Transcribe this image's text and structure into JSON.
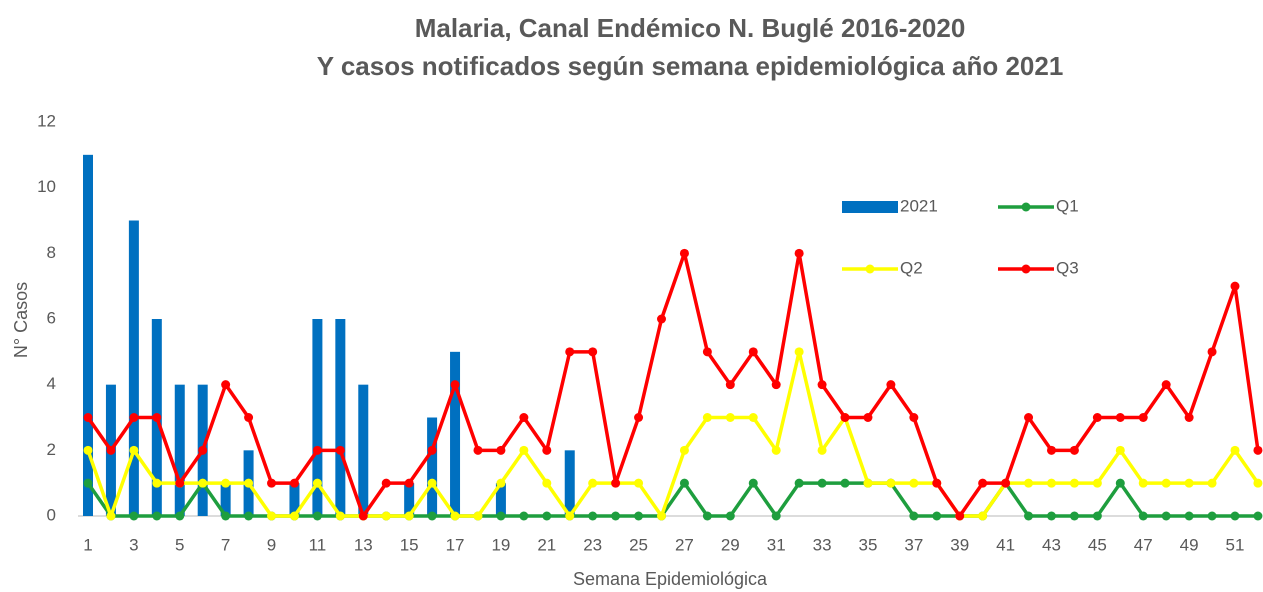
{
  "chart_data": {
    "type": "combo",
    "title": [
      "Malaria, Canal Endémico N. Buglé 2016-2020",
      "Y casos notificados según semana epidemiológica año 2021"
    ],
    "x_label": "Semana Epidemiológica",
    "y_label": "N° Casos",
    "categories": [
      1,
      null,
      3,
      null,
      5,
      null,
      7,
      null,
      9,
      null,
      11,
      null,
      13,
      null,
      15,
      null,
      17,
      null,
      19,
      null,
      21,
      null,
      23,
      null,
      25,
      null,
      27,
      null,
      29,
      null,
      31,
      null,
      33,
      null,
      35,
      null,
      37,
      null,
      39,
      null,
      41,
      null,
      43,
      null,
      45,
      null,
      47,
      null,
      49,
      null,
      51,
      null
    ],
    "ylim": [
      0,
      12
    ],
    "yticks": [
      0,
      2,
      4,
      6,
      8,
      10,
      12
    ],
    "grid": false,
    "series": [
      {
        "name": "2021",
        "type": "bar",
        "color": "#0070c0",
        "values": [
          11,
          4,
          9,
          6,
          4,
          4,
          1,
          2,
          0,
          1,
          6,
          6,
          4,
          0,
          1,
          3,
          5,
          0,
          1,
          0,
          0,
          2,
          null,
          null,
          null,
          null,
          null,
          null,
          null,
          null,
          null,
          null,
          null,
          null,
          null,
          null,
          null,
          null,
          null,
          null,
          null,
          null,
          null,
          null,
          null,
          null,
          null,
          null,
          null,
          null,
          null,
          null
        ]
      },
      {
        "name": "Q1",
        "type": "line",
        "color": "#1e9e3e",
        "values": [
          1,
          0,
          0,
          0,
          0,
          1,
          0,
          0,
          0,
          0,
          0,
          0,
          0,
          0,
          0,
          0,
          0,
          0,
          0,
          0,
          0,
          0,
          0,
          0,
          0,
          0,
          1,
          0,
          0,
          1,
          0,
          1,
          1,
          1,
          1,
          1,
          0,
          0,
          0,
          0,
          1,
          0,
          0,
          0,
          0,
          1,
          0,
          0,
          0,
          0,
          0,
          0
        ]
      },
      {
        "name": "Q2",
        "type": "line",
        "color": "#ffff00",
        "values": [
          2,
          0,
          2,
          1,
          1,
          1,
          1,
          1,
          0,
          0,
          1,
          0,
          0,
          0,
          0,
          1,
          0,
          0,
          1,
          2,
          1,
          0,
          1,
          1,
          1,
          0,
          2,
          3,
          3,
          3,
          2,
          5,
          2,
          3,
          1,
          1,
          1,
          1,
          0,
          0,
          1,
          1,
          1,
          1,
          1,
          2,
          1,
          1,
          1,
          1,
          2,
          1
        ]
      },
      {
        "name": "Q3",
        "type": "line",
        "color": "#ff0000",
        "values": [
          3,
          2,
          3,
          3,
          1,
          2,
          4,
          3,
          1,
          1,
          2,
          2,
          0,
          1,
          1,
          2,
          4,
          2,
          2,
          3,
          2,
          5,
          5,
          1,
          3,
          6,
          8,
          5,
          4,
          5,
          4,
          8,
          4,
          3,
          3,
          4,
          3,
          1,
          0,
          1,
          1,
          3,
          2,
          2,
          3,
          3,
          3,
          4,
          3,
          5,
          7,
          2
        ]
      }
    ]
  }
}
